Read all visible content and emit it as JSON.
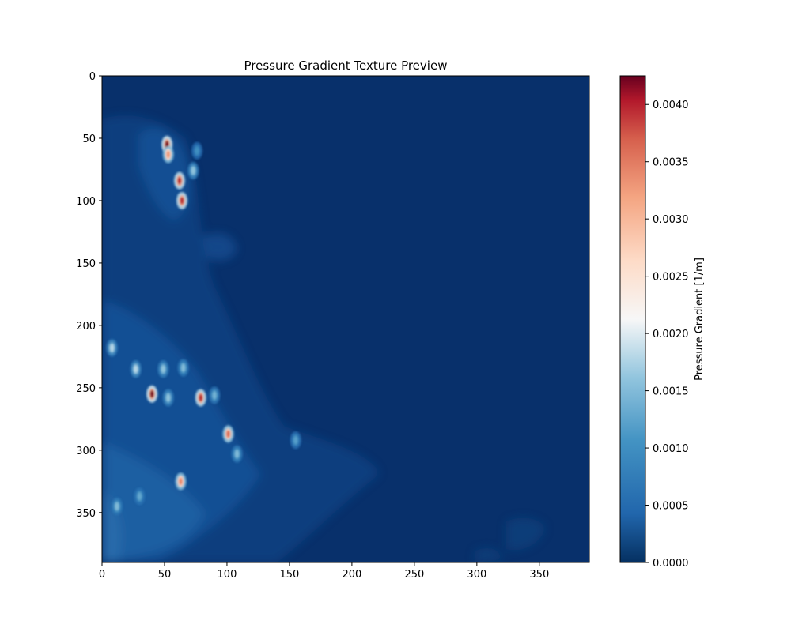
{
  "chart_data": {
    "type": "heatmap",
    "title": "Pressure Gradient Texture Preview",
    "xlabel": "",
    "ylabel": "",
    "colormap": "RdBu_r",
    "background_color": "#08306b",
    "x_range": [
      0,
      390
    ],
    "y_range": [
      390,
      0
    ],
    "x_ticks": [
      0,
      50,
      100,
      150,
      200,
      250,
      300,
      350
    ],
    "y_ticks": [
      0,
      50,
      100,
      150,
      200,
      250,
      300,
      350
    ],
    "colorbar": {
      "label": "Pressure Gradient [1/m]",
      "range": [
        0.0,
        0.00425
      ],
      "ticks": [
        "0.0000",
        "0.0005",
        "0.0010",
        "0.0015",
        "0.0020",
        "0.0025",
        "0.0030",
        "0.0035",
        "0.0040"
      ]
    },
    "features": [
      {
        "x": 52,
        "y": 55,
        "value": 0.0042
      },
      {
        "x": 53,
        "y": 63,
        "value": 0.0033
      },
      {
        "x": 62,
        "y": 84,
        "value": 0.004
      },
      {
        "x": 64,
        "y": 100,
        "value": 0.004
      },
      {
        "x": 40,
        "y": 255,
        "value": 0.0042
      },
      {
        "x": 79,
        "y": 258,
        "value": 0.004
      },
      {
        "x": 101,
        "y": 287,
        "value": 0.0036
      },
      {
        "x": 63,
        "y": 325,
        "value": 0.0034
      },
      {
        "x": 8,
        "y": 218,
        "value": 0.0018
      },
      {
        "x": 27,
        "y": 235,
        "value": 0.0018
      },
      {
        "x": 49,
        "y": 235,
        "value": 0.0016
      },
      {
        "x": 65,
        "y": 234,
        "value": 0.0015
      },
      {
        "x": 53,
        "y": 258,
        "value": 0.0016
      },
      {
        "x": 90,
        "y": 256,
        "value": 0.0014
      },
      {
        "x": 108,
        "y": 303,
        "value": 0.0015
      },
      {
        "x": 73,
        "y": 76,
        "value": 0.0016
      },
      {
        "x": 76,
        "y": 60,
        "value": 0.001
      },
      {
        "x": 30,
        "y": 337,
        "value": 0.0013
      },
      {
        "x": 12,
        "y": 345,
        "value": 0.0015
      },
      {
        "x": 155,
        "y": 292,
        "value": 0.0012
      }
    ]
  }
}
